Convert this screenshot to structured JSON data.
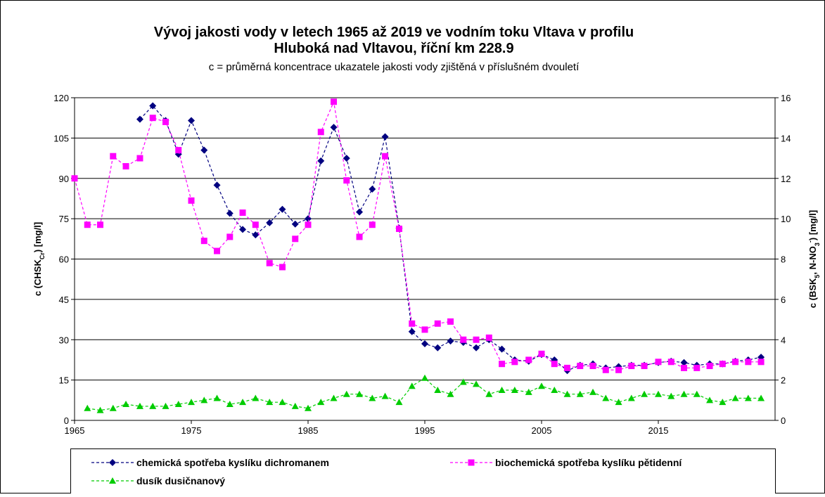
{
  "chart_data": {
    "type": "line",
    "title": "Vývoj jakosti vody v letech 1965 až 2019 ve vodním toku Vltava v profilu",
    "title_line2": "Hluboká nad Vltavou, říční km 228.9",
    "subtitle": "c = průměrná koncentrace ukazatele jakosti vody zjištěná v příslušném dvouletí",
    "y_label": [
      {
        "text": "c (CHSK"
      },
      {
        "text": "Cr",
        "sub": true
      },
      {
        "text": ") [mg/l]"
      }
    ],
    "y2_label": [
      {
        "text": "c (BSK"
      },
      {
        "text": "5",
        "sub": true
      },
      {
        "text": ", N-NO"
      },
      {
        "text": "3",
        "sub": true
      },
      {
        "text": "-",
        "sup": true
      },
      {
        "text": ") [mg/l]"
      }
    ],
    "x": [
      1965.0,
      1966.1,
      1967.2,
      1968.3,
      1969.4,
      1970.6,
      1971.7,
      1972.8,
      1973.9,
      1975.0,
      1976.1,
      1977.2,
      1978.3,
      1979.4,
      1980.5,
      1981.7,
      1982.8,
      1983.9,
      1985.0,
      1986.1,
      1987.2,
      1988.3,
      1989.4,
      1990.5,
      1991.6,
      1992.8,
      1993.9,
      1995.0,
      1996.1,
      1997.2,
      1998.3,
      1999.4,
      2000.5,
      2001.6,
      2002.7,
      2003.9,
      2005.0,
      2006.1,
      2007.2,
      2008.3,
      2009.4,
      2010.5,
      2011.6,
      2012.7,
      2013.8,
      2015.0,
      2016.1,
      2017.2,
      2018.3,
      2019.4,
      2020.5,
      2021.6,
      2022.7,
      2023.8
    ],
    "series": [
      {
        "name": "chemická spotřeba kyslíku dichromanem",
        "color": "#000080",
        "marker": "diamond",
        "axis": "y",
        "values": [
          null,
          null,
          null,
          null,
          null,
          112,
          117,
          111.5,
          99,
          111.5,
          100.5,
          87.5,
          77,
          71,
          69,
          73.5,
          78.5,
          73,
          75,
          96.5,
          109,
          97.5,
          77.5,
          86,
          105.5,
          71.5,
          33,
          28.5,
          27,
          29.5,
          29,
          27,
          30,
          26.5,
          22.5,
          22,
          24.5,
          22.5,
          18.5,
          20.5,
          21,
          19.5,
          20,
          20.5,
          20.5,
          21.5,
          22,
          21.5,
          20.5,
          21,
          21,
          22,
          22.5,
          23.5
        ]
      },
      {
        "name": "biochemická spotřeba kyslíku pětidenní",
        "color": "#ff00ff",
        "marker": "square",
        "axis": "y2",
        "values": [
          12.0,
          9.7,
          9.7,
          13.1,
          12.6,
          13.0,
          15.0,
          14.8,
          13.4,
          10.9,
          8.9,
          8.4,
          9.1,
          10.3,
          9.7,
          7.8,
          7.6,
          9.0,
          9.7,
          14.3,
          15.8,
          11.9,
          9.1,
          9.7,
          13.1,
          9.5,
          4.8,
          4.5,
          4.8,
          4.9,
          4.0,
          4.0,
          4.1,
          2.8,
          2.9,
          3.0,
          3.3,
          2.8,
          2.6,
          2.7,
          2.7,
          2.5,
          2.5,
          2.7,
          2.7,
          2.9,
          2.9,
          2.6,
          2.6,
          2.7,
          2.8,
          2.9,
          2.9,
          2.9
        ]
      },
      {
        "name": "dusík dusičnanový",
        "color": "#00cc00",
        "marker": "triangle",
        "axis": "y2",
        "values": [
          null,
          0.6,
          0.5,
          0.6,
          0.8,
          0.7,
          0.7,
          0.7,
          0.8,
          0.9,
          1.0,
          1.1,
          0.8,
          0.9,
          1.1,
          0.9,
          0.9,
          0.7,
          0.6,
          0.9,
          1.1,
          1.3,
          1.3,
          1.1,
          1.2,
          0.9,
          1.7,
          2.1,
          1.5,
          1.3,
          1.9,
          1.8,
          1.3,
          1.5,
          1.5,
          1.4,
          1.7,
          1.5,
          1.3,
          1.3,
          1.4,
          1.1,
          0.9,
          1.1,
          1.3,
          1.3,
          1.2,
          1.3,
          1.3,
          1.0,
          0.9,
          1.1,
          1.1,
          1.1
        ]
      }
    ],
    "xlim": [
      1965,
      2025
    ],
    "xticks": [
      1965,
      1975,
      1985,
      1995,
      2005,
      2015
    ],
    "ylim": [
      0,
      120
    ],
    "yticks": [
      0,
      15,
      30,
      45,
      60,
      75,
      90,
      105,
      120
    ],
    "y2lim": [
      0,
      16
    ],
    "y2ticks": [
      0,
      2,
      4,
      6,
      8,
      10,
      12,
      14,
      16
    ],
    "grid": true,
    "legend": "bottom"
  }
}
